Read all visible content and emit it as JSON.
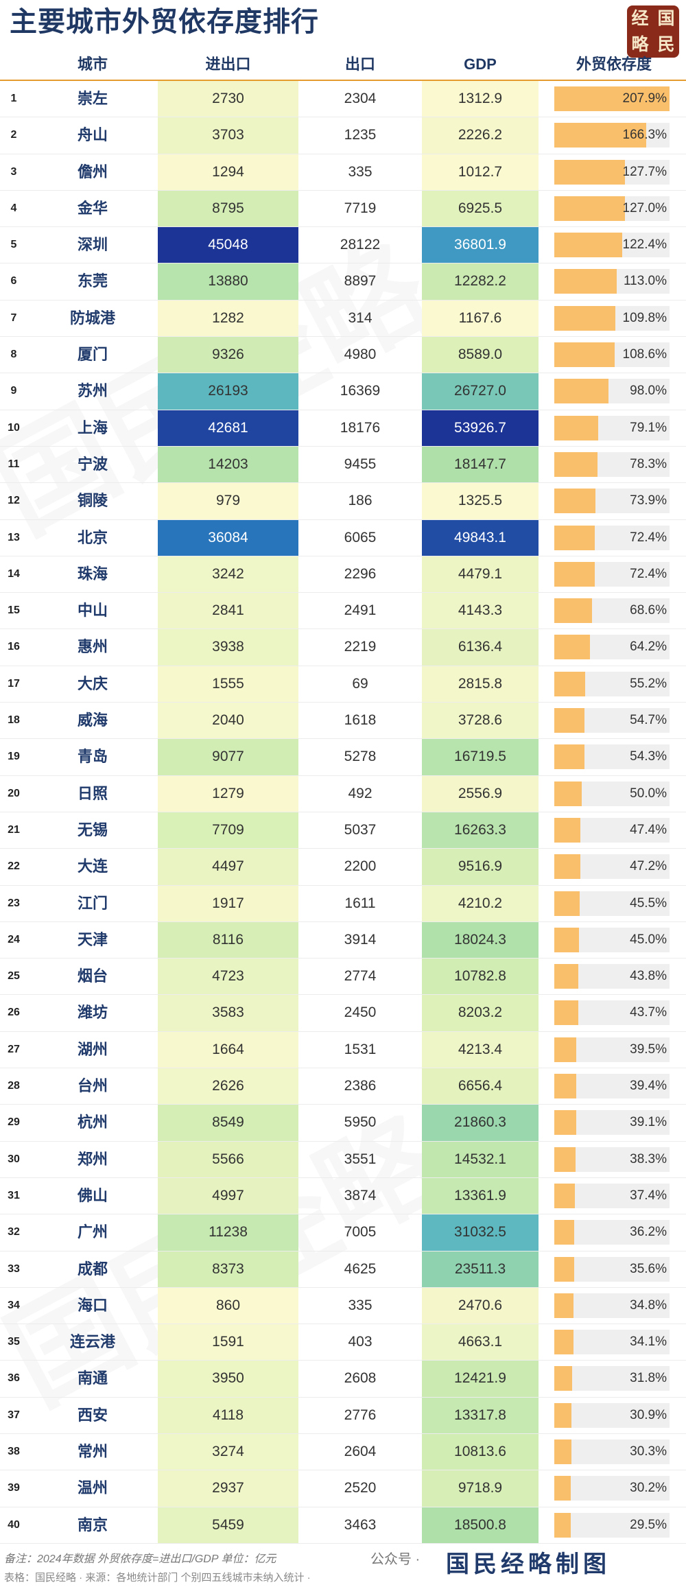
{
  "title": "主要城市外贸依存度排行",
  "logo": [
    "经",
    "国",
    "略",
    "民"
  ],
  "columns": {
    "city": "城市",
    "import_export": "进出口",
    "export": "出口",
    "gdp": "GDP",
    "dependency": "外贸依存度"
  },
  "colors": {
    "title": "#1f3864",
    "bar": "#f9bf6b",
    "bar_bg": "#efefef",
    "heat_low": "#fbf9d0",
    "heat_mid": "#b2dfab",
    "heat_high": "#1c4fa8"
  },
  "chart_data": {
    "type": "table",
    "title": "主要城市外贸依存度排行",
    "rows": [
      {
        "rank": 1,
        "city": "崇左",
        "import_export": 2730,
        "export": 2304,
        "gdp": "1312.9",
        "dependency": 207.9
      },
      {
        "rank": 2,
        "city": "舟山",
        "import_export": 3703,
        "export": 1235,
        "gdp": "2226.2",
        "dependency": 166.3
      },
      {
        "rank": 3,
        "city": "儋州",
        "import_export": 1294,
        "export": 335,
        "gdp": "1012.7",
        "dependency": 127.7
      },
      {
        "rank": 4,
        "city": "金华",
        "import_export": 8795,
        "export": 7719,
        "gdp": "6925.5",
        "dependency": 127.0
      },
      {
        "rank": 5,
        "city": "深圳",
        "import_export": 45048,
        "export": 28122,
        "gdp": "36801.9",
        "dependency": 122.4
      },
      {
        "rank": 6,
        "city": "东莞",
        "import_export": 13880,
        "export": 8897,
        "gdp": "12282.2",
        "dependency": 113.0
      },
      {
        "rank": 7,
        "city": "防城港",
        "import_export": 1282,
        "export": 314,
        "gdp": "1167.6",
        "dependency": 109.8
      },
      {
        "rank": 8,
        "city": "厦门",
        "import_export": 9326,
        "export": 4980,
        "gdp": "8589.0",
        "dependency": 108.6
      },
      {
        "rank": 9,
        "city": "苏州",
        "import_export": 26193,
        "export": 16369,
        "gdp": "26727.0",
        "dependency": 98.0
      },
      {
        "rank": 10,
        "city": "上海",
        "import_export": 42681,
        "export": 18176,
        "gdp": "53926.7",
        "dependency": 79.1
      },
      {
        "rank": 11,
        "city": "宁波",
        "import_export": 14203,
        "export": 9455,
        "gdp": "18147.7",
        "dependency": 78.3
      },
      {
        "rank": 12,
        "city": "铜陵",
        "import_export": 979,
        "export": 186,
        "gdp": "1325.5",
        "dependency": 73.9
      },
      {
        "rank": 13,
        "city": "北京",
        "import_export": 36084,
        "export": 6065,
        "gdp": "49843.1",
        "dependency": 72.4
      },
      {
        "rank": 14,
        "city": "珠海",
        "import_export": 3242,
        "export": 2296,
        "gdp": "4479.1",
        "dependency": 72.4
      },
      {
        "rank": 15,
        "city": "中山",
        "import_export": 2841,
        "export": 2491,
        "gdp": "4143.3",
        "dependency": 68.6
      },
      {
        "rank": 16,
        "city": "惠州",
        "import_export": 3938,
        "export": 2219,
        "gdp": "6136.4",
        "dependency": 64.2
      },
      {
        "rank": 17,
        "city": "大庆",
        "import_export": 1555,
        "export": 69,
        "gdp": "2815.8",
        "dependency": 55.2
      },
      {
        "rank": 18,
        "city": "威海",
        "import_export": 2040,
        "export": 1618,
        "gdp": "3728.6",
        "dependency": 54.7
      },
      {
        "rank": 19,
        "city": "青岛",
        "import_export": 9077,
        "export": 5278,
        "gdp": "16719.5",
        "dependency": 54.3
      },
      {
        "rank": 20,
        "city": "日照",
        "import_export": 1279,
        "export": 492,
        "gdp": "2556.9",
        "dependency": 50.0
      },
      {
        "rank": 21,
        "city": "无锡",
        "import_export": 7709,
        "export": 5037,
        "gdp": "16263.3",
        "dependency": 47.4
      },
      {
        "rank": 22,
        "city": "大连",
        "import_export": 4497,
        "export": 2200,
        "gdp": "9516.9",
        "dependency": 47.2
      },
      {
        "rank": 23,
        "city": "江门",
        "import_export": 1917,
        "export": 1611,
        "gdp": "4210.2",
        "dependency": 45.5
      },
      {
        "rank": 24,
        "city": "天津",
        "import_export": 8116,
        "export": 3914,
        "gdp": "18024.3",
        "dependency": 45.0
      },
      {
        "rank": 25,
        "city": "烟台",
        "import_export": 4723,
        "export": 2774,
        "gdp": "10782.8",
        "dependency": 43.8
      },
      {
        "rank": 26,
        "city": "潍坊",
        "import_export": 3583,
        "export": 2450,
        "gdp": "8203.2",
        "dependency": 43.7
      },
      {
        "rank": 27,
        "city": "湖州",
        "import_export": 1664,
        "export": 1531,
        "gdp": "4213.4",
        "dependency": 39.5
      },
      {
        "rank": 28,
        "city": "台州",
        "import_export": 2626,
        "export": 2386,
        "gdp": "6656.4",
        "dependency": 39.4
      },
      {
        "rank": 29,
        "city": "杭州",
        "import_export": 8549,
        "export": 5950,
        "gdp": "21860.3",
        "dependency": 39.1
      },
      {
        "rank": 30,
        "city": "郑州",
        "import_export": 5566,
        "export": 3551,
        "gdp": "14532.1",
        "dependency": 38.3
      },
      {
        "rank": 31,
        "city": "佛山",
        "import_export": 4997,
        "export": 3874,
        "gdp": "13361.9",
        "dependency": 37.4
      },
      {
        "rank": 32,
        "city": "广州",
        "import_export": 11238,
        "export": 7005,
        "gdp": "31032.5",
        "dependency": 36.2
      },
      {
        "rank": 33,
        "city": "成都",
        "import_export": 8373,
        "export": 4625,
        "gdp": "23511.3",
        "dependency": 35.6
      },
      {
        "rank": 34,
        "city": "海口",
        "import_export": 860,
        "export": 335,
        "gdp": "2470.6",
        "dependency": 34.8
      },
      {
        "rank": 35,
        "city": "连云港",
        "import_export": 1591,
        "export": 403,
        "gdp": "4663.1",
        "dependency": 34.1
      },
      {
        "rank": 36,
        "city": "南通",
        "import_export": 3950,
        "export": 2608,
        "gdp": "12421.9",
        "dependency": 31.8
      },
      {
        "rank": 37,
        "city": "西安",
        "import_export": 4118,
        "export": 2776,
        "gdp": "13317.8",
        "dependency": 30.9
      },
      {
        "rank": 38,
        "city": "常州",
        "import_export": 3274,
        "export": 2604,
        "gdp": "10813.6",
        "dependency": 30.3
      },
      {
        "rank": 39,
        "city": "温州",
        "import_export": 2937,
        "export": 2520,
        "gdp": "9718.9",
        "dependency": 30.2
      },
      {
        "rank": 40,
        "city": "南京",
        "import_export": 5459,
        "export": 3463,
        "gdp": "18500.8",
        "dependency": 29.5
      }
    ]
  },
  "footer": {
    "note": "备注：2024年数据 外贸依存度=进出口/GDP 单位：亿元",
    "source": "表格：国民经略 · 来源：各地统计部门 个别四五线城市未纳入统计 ·",
    "wechat": "公众号 ·",
    "brand": "国民经略制图"
  },
  "watermark": "国民经略"
}
